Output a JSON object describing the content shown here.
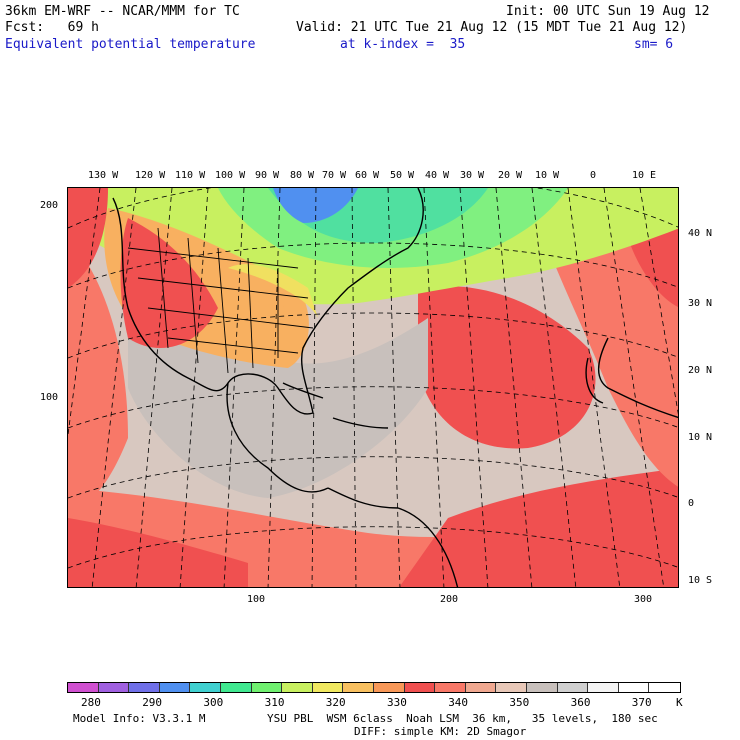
{
  "header": {
    "model_line": "36km EM-WRF -- NCAR/MMM for TC",
    "init_line": "Init: 00 UTC Sun 19 Aug 12",
    "fcst_line": "Fcst:   69 h",
    "valid_line": "Valid: 21 UTC Tue 21 Aug 12 (15 MDT Tue 21 Aug 12)",
    "field_name": "Equivalent potential temperature",
    "level": "at k-index =  35",
    "smoothing": "sm= 6"
  },
  "map": {
    "top_lon_labels": [
      "130 W",
      "120 W",
      "110 W",
      "100 W",
      "90 W",
      "80 W",
      "70 W",
      "60 W",
      "50 W",
      "40 W",
      "30 W",
      "20 W",
      "10 W",
      "0",
      "10 E"
    ],
    "right_lat_labels": [
      "40 N",
      "30 N",
      "20 N",
      "10 N",
      "0",
      "10 S"
    ],
    "left_grid_labels": [
      "200",
      "100"
    ],
    "bottom_grid_labels": [
      "100",
      "200",
      "300"
    ],
    "colors": {
      "background": "#d8c8c0",
      "gray": "#c8c0bc",
      "peach": "#f0a890",
      "salmon": "#f87868",
      "red": "#f05050",
      "orange": "#f8b060",
      "yellow": "#f0e060",
      "lime": "#c0f060",
      "green": "#80f080",
      "teal": "#50e0a0",
      "blue": "#5090f0"
    }
  },
  "colorbar": {
    "swatches": [
      "#d050d0",
      "#a060e0",
      "#7070e8",
      "#5090f0",
      "#40d0d0",
      "#40e890",
      "#70f070",
      "#c8f060",
      "#f0e860",
      "#f8c060",
      "#f89858",
      "#f05050",
      "#f87868",
      "#f0a890",
      "#e8c8b8",
      "#c8c0bc",
      "#d0d0d0",
      "#f4f4f4",
      "#ffffff",
      "#ffffff"
    ],
    "ticks": [
      "280",
      "290",
      "300",
      "310",
      "320",
      "330",
      "340",
      "350",
      "360",
      "370"
    ],
    "unit": "K"
  },
  "footer": {
    "model_info": "Model Info: V3.3.1 M",
    "physics": "YSU PBL  WSM 6class  Noah LSM  36 km,   35 levels,  180 sec",
    "diff": "DIFF: simple KM: 2D Smagor"
  }
}
